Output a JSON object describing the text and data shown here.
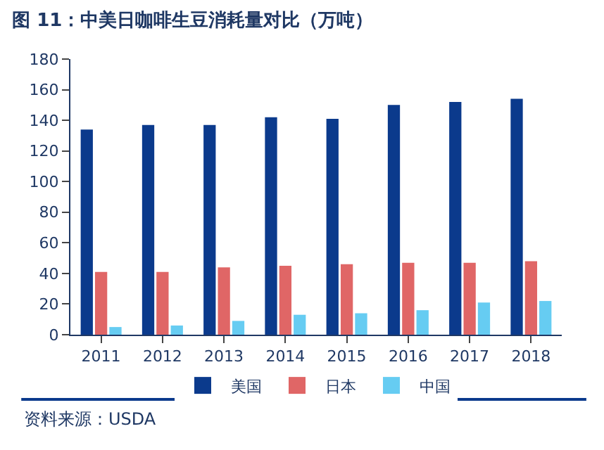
{
  "chart_data": {
    "type": "bar",
    "title": "图 11：中美日咖啡生豆消耗量对比（万吨）",
    "categories": [
      "2011",
      "2012",
      "2013",
      "2014",
      "2015",
      "2016",
      "2017",
      "2018"
    ],
    "series": [
      {
        "name": "美国",
        "color": "#0b3a8c",
        "values": [
          134,
          137,
          137,
          142,
          141,
          150,
          152,
          154
        ]
      },
      {
        "name": "日本",
        "color": "#e06666",
        "values": [
          41,
          41,
          44,
          45,
          46,
          47,
          47,
          48
        ]
      },
      {
        "name": "中国",
        "color": "#66ccf2",
        "values": [
          5,
          6,
          9,
          13,
          14,
          16,
          21,
          22
        ]
      }
    ],
    "ylim": [
      0,
      180
    ],
    "yticks": [
      0,
      20,
      40,
      60,
      80,
      100,
      120,
      140,
      160,
      180
    ],
    "grid": false,
    "legend": "bottom",
    "annotations": [
      "资料来源：USDA"
    ]
  }
}
